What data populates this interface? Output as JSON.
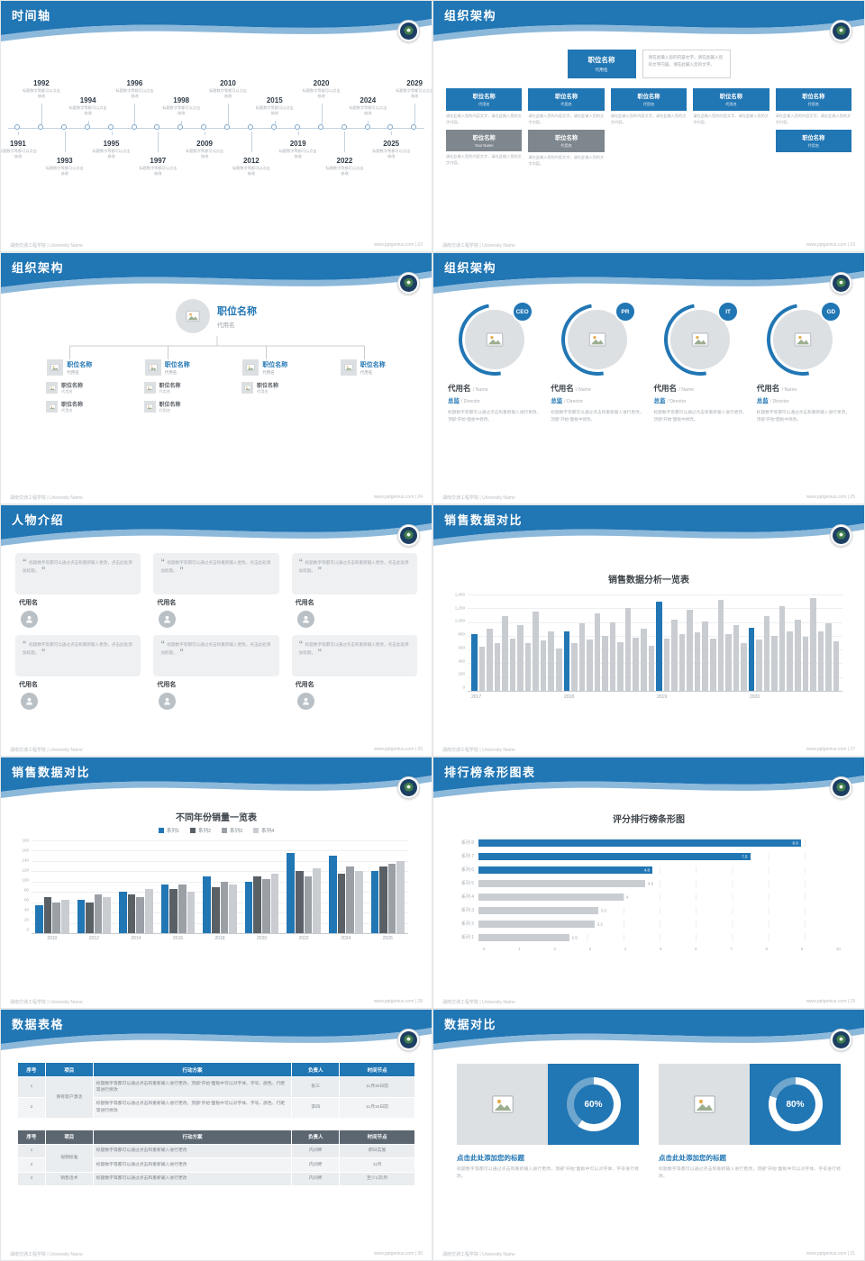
{
  "theme": {
    "header_blue": "#2176b4",
    "wave_light_blue": "#8cb8da",
    "accent_blue": "#2176b4",
    "bar_gray": "#c9cdd2",
    "dark_slate": "#5b6670",
    "text_gray": "#9aa0a6"
  },
  "footer": {
    "left": "湖南交通工程学院 | University Name"
  },
  "slides": {
    "timeline": {
      "title": "时间轴",
      "footer_right": "www.pptgenius.com | 22",
      "caption": "标题数字等都可以点击修改",
      "items": [
        {
          "year": "1991",
          "side": "bottom",
          "tier": "near"
        },
        {
          "year": "1992",
          "side": "top",
          "tier": "far"
        },
        {
          "year": "1993",
          "side": "bottom",
          "tier": "far"
        },
        {
          "year": "1994",
          "side": "top",
          "tier": "near"
        },
        {
          "year": "1995",
          "side": "bottom",
          "tier": "near"
        },
        {
          "year": "1996",
          "side": "top",
          "tier": "far"
        },
        {
          "year": "1997",
          "side": "bottom",
          "tier": "far"
        },
        {
          "year": "1998",
          "side": "top",
          "tier": "near"
        },
        {
          "year": "2009",
          "side": "bottom",
          "tier": "near"
        },
        {
          "year": "2010",
          "side": "top",
          "tier": "far"
        },
        {
          "year": "2012",
          "side": "bottom",
          "tier": "far"
        },
        {
          "year": "2015",
          "side": "top",
          "tier": "near"
        },
        {
          "year": "2019",
          "side": "bottom",
          "tier": "near"
        },
        {
          "year": "2020",
          "side": "top",
          "tier": "far"
        },
        {
          "year": "2022",
          "side": "bottom",
          "tier": "far"
        },
        {
          "year": "2024",
          "side": "top",
          "tier": "near"
        },
        {
          "year": "2025",
          "side": "bottom",
          "tier": "near"
        },
        {
          "year": "2029",
          "side": "top",
          "tier": "far"
        }
      ]
    },
    "org1": {
      "title": "组织架构",
      "footer_right": "www.pptgenius.com | 23",
      "top_box": {
        "title": "职位名称",
        "name": "代用名"
      },
      "top_note": "请在此输入您的内容文字，请在此输入您的文字内容，请在此输入您的文字。",
      "columns": [
        {
          "title": "职位名称",
          "name": "代用名",
          "note": "请在此输入您的内容文字，请在此输入您的文字内容。"
        },
        {
          "title": "职位名称",
          "name": "代用名",
          "note": "请在此输入您的内容文字，请在此输入您的文字内容。"
        },
        {
          "title": "职位名称",
          "name": "代用名",
          "note": "请在此输入您的内容文字，请在此输入您的文字内容。"
        },
        {
          "title": "职位名称",
          "name": "代用名",
          "note": "请在此输入您的内容文字，请在此输入您的文字内容。"
        },
        {
          "title": "职位名称",
          "name": "代用名",
          "note": "请在此输入您的内容文字，请在此输入您的文字内容。"
        }
      ],
      "bottom": [
        {
          "title": "职位名称",
          "name": "Your Name",
          "note": "请在此输入您的内容文字，请在此输入您的文字内容。"
        },
        {
          "title": "职位名称",
          "name": "代用名",
          "note": "请在此输入您的内容文字，请在此输入您的文字内容。"
        }
      ],
      "extra_box": {
        "title": "职位名称",
        "name": "代用名"
      }
    },
    "org2": {
      "title": "组织架构",
      "footer_right": "www.pptgenius.com | 24",
      "root": {
        "title": "职位名称",
        "name": "代用名"
      },
      "nodes": [
        {
          "title": "职位名称",
          "name": "代用名",
          "children": [
            {
              "title": "职位名称",
              "name": "代用名"
            },
            {
              "title": "职位名称",
              "name": "代用名"
            }
          ]
        },
        {
          "title": "职位名称",
          "name": "代用名",
          "children": [
            {
              "title": "职位名称",
              "name": "代用名"
            },
            {
              "title": "职位名称",
              "name": "代用名"
            }
          ]
        },
        {
          "title": "职位名称",
          "name": "代用名",
          "children": [
            {
              "title": "职位名称",
              "name": "代用名"
            }
          ]
        },
        {
          "title": "职位名称",
          "name": "代用名",
          "children": []
        }
      ]
    },
    "org3": {
      "title": "组织架构",
      "footer_right": "www.pptgenius.com | 25",
      "desc": "标题数字等都可以通过点击和重新输入进行更改，顶部“开始”面板中修改。",
      "members": [
        {
          "badge": "CEO",
          "name": "代用名",
          "name_en": "/ Name",
          "role": "总监",
          "role_en": "/ Director"
        },
        {
          "badge": "PR",
          "name": "代用名",
          "name_en": "/ Name",
          "role": "总监",
          "role_en": "/ Director"
        },
        {
          "badge": "IT",
          "name": "代用名",
          "name_en": "/ Name",
          "role": "总监",
          "role_en": "/ Director"
        },
        {
          "badge": "GD",
          "name": "代用名",
          "name_en": "/ Name",
          "role": "总监",
          "role_en": "/ Director"
        }
      ]
    },
    "people": {
      "title": "人物介绍",
      "footer_right": "www.pptgenius.com | 26",
      "quote": "标题数字等都可以通过点击和重新输入更改，点击此处添加标题。",
      "cards": [
        {
          "name": "代用名"
        },
        {
          "name": "代用名"
        },
        {
          "name": "代用名"
        },
        {
          "name": "代用名"
        },
        {
          "name": "代用名"
        },
        {
          "name": "代用名"
        }
      ]
    },
    "sales1": {
      "title": "销售数据对比",
      "footer_right": "www.pptgenius.com | 27"
    },
    "sales2": {
      "title": "销售数据对比",
      "footer_right": "www.pptgenius.com | 28"
    },
    "ranking": {
      "title": "排行榜条形图表",
      "footer_right": "www.pptgenius.com | 29"
    },
    "tables": {
      "title": "数据表格",
      "footer_right": "www.pptgenius.com | 30",
      "table1": {
        "headers": [
          "序号",
          "项目",
          "行动方案",
          "负责人",
          "时间节点"
        ],
        "project": "保有客户激活",
        "rows": [
          {
            "no": "1",
            "plan": "标题数字等都可以通过点击和重新输入进行更改，顶部“开始”面板中可以对字体、字号、颜色、行距等进行修改",
            "owner": "张三",
            "time": "11月30日前"
          },
          {
            "no": "2",
            "plan": "标题数字等都可以通过点击和重新输入进行更改，顶部“开始”面板中可以对字体、字号、颜色、行距等进行修改",
            "owner": "李四",
            "time": "11月15日前"
          }
        ]
      },
      "table2": {
        "headers": [
          "序号",
          "项目",
          "行动方案",
          "负责人",
          "时间节点"
        ],
        "rows": [
          {
            "no": "1",
            "project": "视频标准",
            "project_rowspan": 2,
            "plan": "标题数字等都可以通过点击和重新输入进行更改",
            "owner": "内训师",
            "time": "即日实施"
          },
          {
            "no": "2",
            "plan": "标题数字等都可以通过点击和重新输入进行更改",
            "owner": "内训师",
            "time": "11月"
          },
          {
            "no": "3",
            "project": "销售话术",
            "plan": "标题数字等都可以通过点击和重新输入进行更改",
            "owner": "内训师",
            "time": "至少1次/月"
          }
        ]
      }
    },
    "compare": {
      "title": "数据对比",
      "footer_right": "www.pptgenius.com | 31",
      "blocks": [
        {
          "heading": "点击此处添加您的标题",
          "desc": "标题数字等都可以通过点击和重新输入进行更改，顶部“开始”面板中可以对字体、字号进行修改。"
        },
        {
          "heading": "点击此处添加您的标题",
          "desc": "标题数字等都可以通过点击和重新输入进行更改，顶部“开始”面板中可以对字体、字号进行修改。"
        }
      ]
    }
  },
  "chart_data": [
    {
      "id": "sales-monthly",
      "type": "bar",
      "title": "销售数据分析一览表",
      "x_groups": [
        "2017",
        "2018",
        "2019",
        "2020"
      ],
      "values": [
        820,
        640,
        900,
        700,
        1080,
        760,
        950,
        690,
        1150,
        730,
        860,
        620,
        860,
        700,
        980,
        750,
        1120,
        800,
        990,
        710,
        1210,
        770,
        900,
        650,
        1290,
        760,
        1040,
        820,
        1180,
        850,
        1010,
        760,
        1320,
        830,
        950,
        700,
        920,
        740,
        1080,
        800,
        1230,
        870,
        1030,
        780,
        1350,
        860,
        980,
        720
      ],
      "highlight_indices": [
        0,
        12,
        24,
        36
      ],
      "ylim": [
        0,
        1400
      ],
      "yticks": [
        "1,400",
        "1,200",
        "1,000",
        "800",
        "600",
        "400",
        "200",
        "0"
      ],
      "bar_color": "#c9cdd2",
      "highlight_color": "#2176b4",
      "grid": true,
      "legend": "none"
    },
    {
      "id": "sales-yearly",
      "type": "bar",
      "title": "不同年份销量一览表",
      "categories": [
        "2010",
        "2012",
        "2014",
        "2016",
        "2018",
        "2020",
        "2022",
        "2024",
        "2026"
      ],
      "series": [
        {
          "name": "系列1",
          "color": "#2176b4",
          "values": [
            55,
            65,
            80,
            95,
            110,
            100,
            155,
            150,
            120
          ]
        },
        {
          "name": "系列2",
          "color": "#596066",
          "values": [
            70,
            60,
            75,
            85,
            90,
            110,
            120,
            115,
            130
          ]
        },
        {
          "name": "系列3",
          "color": "#9aa0a6",
          "values": [
            60,
            75,
            70,
            95,
            100,
            105,
            110,
            130,
            135
          ]
        },
        {
          "name": "系列4",
          "color": "#c9cdd2",
          "values": [
            65,
            70,
            85,
            80,
            95,
            115,
            125,
            120,
            140
          ]
        }
      ],
      "ylim": [
        0,
        180
      ],
      "yticks": [
        "180",
        "160",
        "140",
        "120",
        "100",
        "80",
        "60",
        "40",
        "20",
        "0"
      ],
      "grid": true,
      "legend": "top"
    },
    {
      "id": "score-ranking",
      "type": "bar-horizontal",
      "title": "评分排行榜条形图",
      "categories": [
        "系列 8",
        "系列 7",
        "系列 6",
        "系列 5",
        "系列 4",
        "系列 3",
        "系列 2",
        "系列 1"
      ],
      "values": [
        8.9,
        7.5,
        4.8,
        4.6,
        4,
        3.3,
        3.2,
        2.5
      ],
      "highlight_count": 3,
      "xlim": [
        0,
        10
      ],
      "xticks": [
        "0",
        "1",
        "2",
        "3",
        "4",
        "5",
        "6",
        "7",
        "8",
        "9",
        "10"
      ],
      "bar_color": "#c9cdd2",
      "highlight_color": "#2176b4",
      "grid": true
    },
    {
      "id": "progress-donuts",
      "type": "donut",
      "values": [
        60,
        80
      ],
      "labels": [
        "60%",
        "80%"
      ]
    }
  ]
}
